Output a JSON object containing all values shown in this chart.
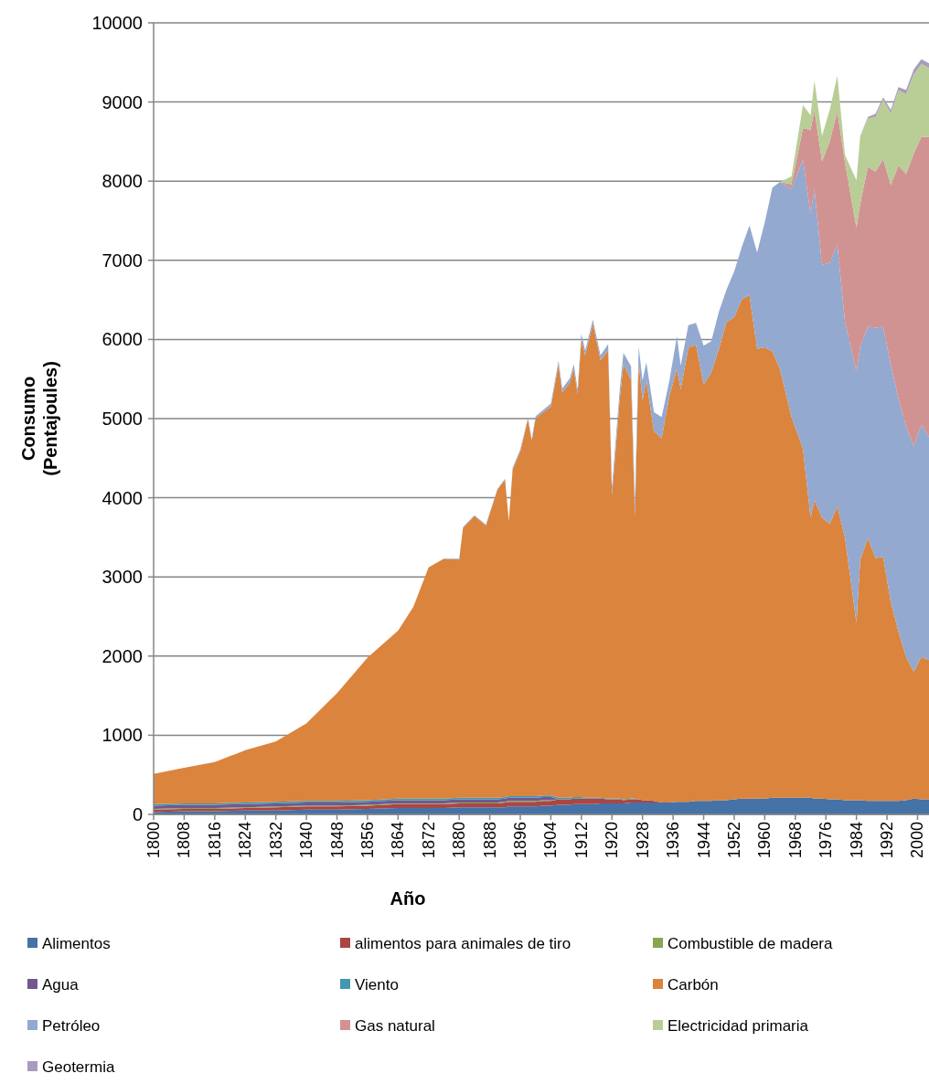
{
  "chart_data": {
    "type": "area",
    "stacked": true,
    "xlabel": "Año",
    "ylabel": "Consumo (Pentajoules)",
    "x": [
      1800,
      1808,
      1816,
      1824,
      1832,
      1840,
      1848,
      1856,
      1864,
      1868,
      1872,
      1876,
      1880,
      1881,
      1884,
      1887,
      1890,
      1892,
      1893,
      1894,
      1896,
      1898,
      1899,
      1900,
      1902,
      1904,
      1906,
      1907,
      1909,
      1910,
      1911,
      1912,
      1913,
      1915,
      1917,
      1919,
      1920,
      1922,
      1923,
      1925,
      1926,
      1927,
      1928,
      1929,
      1931,
      1933,
      1935,
      1937,
      1938,
      1940,
      1942,
      1944,
      1946,
      1948,
      1950,
      1952,
      1954,
      1956,
      1958,
      1960,
      1962,
      1964,
      1967,
      1970,
      1972,
      1973,
      1975,
      1977,
      1979,
      1981,
      1984,
      1985,
      1987,
      1989,
      1991,
      1993,
      1995,
      1997,
      1999,
      2001,
      2003
    ],
    "xlim": [
      1800,
      2003
    ],
    "xticks": [
      1800,
      1808,
      1816,
      1824,
      1832,
      1840,
      1848,
      1856,
      1864,
      1872,
      1880,
      1888,
      1896,
      1904,
      1912,
      1920,
      1928,
      1936,
      1944,
      1952,
      1960,
      1968,
      1976,
      1984,
      1992,
      2000
    ],
    "ylim": [
      0,
      10000
    ],
    "yticks": [
      0,
      1000,
      2000,
      3000,
      4000,
      5000,
      6000,
      7000,
      8000,
      9000,
      10000
    ],
    "grid": "y",
    "legend": "bottom",
    "series": [
      {
        "name": "Alimentos",
        "color": "#4572a7",
        "values": [
          30,
          40,
          40,
          50,
          50,
          60,
          60,
          70,
          80,
          80,
          80,
          80,
          90,
          90,
          90,
          90,
          90,
          90,
          100,
          100,
          100,
          100,
          100,
          100,
          110,
          110,
          120,
          120,
          120,
          130,
          130,
          130,
          130,
          130,
          140,
          140,
          140,
          140,
          140,
          150,
          150,
          150,
          150,
          150,
          150,
          150,
          150,
          160,
          160,
          160,
          170,
          170,
          170,
          180,
          180,
          190,
          200,
          200,
          200,
          200,
          210,
          210,
          210,
          210,
          210,
          200,
          200,
          190,
          190,
          180,
          180,
          180,
          170,
          170,
          170,
          170,
          170,
          180,
          200,
          190,
          190
        ]
      },
      {
        "name": "alimentos para animales de tiro",
        "color": "#aa4643",
        "values": [
          30,
          30,
          30,
          30,
          40,
          40,
          40,
          40,
          50,
          50,
          50,
          50,
          50,
          50,
          50,
          50,
          50,
          60,
          60,
          60,
          60,
          60,
          60,
          60,
          60,
          60,
          70,
          70,
          70,
          70,
          70,
          70,
          70,
          70,
          60,
          50,
          50,
          50,
          40,
          40,
          40,
          40,
          30,
          30,
          20,
          0,
          null,
          null,
          null,
          null,
          null,
          null,
          null,
          null,
          null,
          null,
          null,
          null,
          null,
          null,
          null,
          null,
          null,
          null,
          null,
          null,
          null,
          null,
          null,
          null,
          null,
          null,
          null,
          null,
          null,
          null,
          null,
          null,
          null,
          null,
          null
        ]
      },
      {
        "name": "Combustible de madera",
        "color": "#89a54e",
        "values": [
          10,
          10,
          10,
          10,
          10,
          10,
          10,
          10,
          10,
          10,
          10,
          10,
          10,
          10,
          10,
          10,
          10,
          10,
          10,
          10,
          10,
          10,
          10,
          10,
          10,
          10,
          0,
          null,
          null,
          null,
          null,
          null,
          null,
          null,
          null,
          null,
          null,
          null,
          null,
          null,
          null,
          null,
          null,
          null,
          null,
          null,
          null,
          null,
          null,
          null,
          null,
          null,
          null,
          null,
          null,
          null,
          null,
          null,
          null,
          null,
          null,
          null,
          null,
          null,
          null,
          null,
          null,
          null,
          null,
          null,
          null,
          null,
          null,
          null,
          null,
          null,
          null,
          null,
          null,
          null,
          null
        ]
      },
      {
        "name": "Agua",
        "color": "#71588f",
        "values": [
          40,
          40,
          40,
          40,
          40,
          40,
          40,
          40,
          40,
          40,
          40,
          40,
          40,
          40,
          40,
          40,
          40,
          40,
          40,
          40,
          40,
          40,
          40,
          40,
          40,
          40,
          0,
          null,
          null,
          null,
          null,
          null,
          null,
          null,
          null,
          null,
          null,
          null,
          null,
          null,
          null,
          null,
          null,
          null,
          null,
          null,
          null,
          null,
          null,
          null,
          null,
          null,
          null,
          null,
          null,
          null,
          null,
          null,
          null,
          null,
          null,
          null,
          null,
          null,
          null,
          null,
          null,
          null,
          null,
          null,
          null,
          null,
          null,
          null,
          null,
          null,
          null,
          null,
          null,
          null,
          null
        ]
      },
      {
        "name": "Viento",
        "color": "#4198af",
        "values": [
          20,
          20,
          20,
          20,
          20,
          20,
          20,
          20,
          20,
          20,
          20,
          20,
          20,
          20,
          20,
          20,
          20,
          20,
          20,
          20,
          20,
          20,
          20,
          20,
          20,
          20,
          20,
          20,
          20,
          20,
          20,
          20,
          10,
          10,
          10,
          10,
          10,
          10,
          10,
          10,
          10,
          0,
          null,
          null,
          null,
          null,
          null,
          null,
          null,
          null,
          null,
          null,
          null,
          null,
          null,
          null,
          null,
          null,
          null,
          null,
          null,
          null,
          null,
          null,
          null,
          null,
          null,
          null,
          null,
          null,
          null,
          null,
          null,
          null,
          null,
          null,
          null,
          null,
          null,
          null,
          null
        ]
      },
      {
        "name": "Carbón",
        "color": "#db843d",
        "values": [
          380,
          450,
          520,
          660,
          760,
          980,
          1360,
          1800,
          2120,
          2420,
          2920,
          3030,
          3010,
          3410,
          3560,
          3440,
          3890,
          4010,
          3470,
          4130,
          4360,
          4760,
          4490,
          4770,
          4840,
          4910,
          5470,
          5120,
          5250,
          5410,
          5090,
          5790,
          5590,
          5990,
          5530,
          5660,
          3830,
          5030,
          5490,
          5290,
          3560,
          5520,
          5050,
          5300,
          4670,
          4600,
          5130,
          5470,
          5210,
          5740,
          5760,
          5260,
          5410,
          5700,
          6040,
          6090,
          6310,
          6360,
          5680,
          5700,
          5640,
          5410,
          4810,
          4410,
          3540,
          3770,
          3550,
          3480,
          3700,
          3320,
          2240,
          3040,
          3320,
          3070,
          3080,
          2510,
          2140,
          1810,
          1600,
          1800,
          1760
        ]
      },
      {
        "name": "Petróleo",
        "color": "#93a9cf",
        "values": [
          null,
          null,
          null,
          null,
          null,
          null,
          null,
          null,
          null,
          null,
          null,
          0,
          10,
          10,
          10,
          10,
          10,
          10,
          10,
          20,
          20,
          20,
          20,
          30,
          30,
          40,
          50,
          50,
          50,
          60,
          60,
          60,
          60,
          50,
          60,
          80,
          100,
          120,
          150,
          170,
          180,
          200,
          250,
          230,
          240,
          270,
          190,
          410,
          300,
          280,
          280,
          490,
          400,
          470,
          410,
          580,
          660,
          880,
          1220,
          1580,
          2070,
          2370,
          2880,
          3650,
          3830,
          3930,
          3190,
          3300,
          3310,
          2720,
          3170,
          2690,
          2670,
          2910,
          2910,
          3000,
          2940,
          2910,
          2850,
          2930,
          2820
        ]
      },
      {
        "name": "Gas natural",
        "color": "#d19392",
        "values": [
          null,
          null,
          null,
          null,
          null,
          null,
          null,
          null,
          null,
          null,
          null,
          null,
          null,
          null,
          null,
          null,
          null,
          null,
          null,
          null,
          null,
          null,
          null,
          null,
          null,
          null,
          null,
          null,
          null,
          null,
          null,
          null,
          null,
          null,
          null,
          null,
          null,
          null,
          null,
          null,
          null,
          null,
          null,
          null,
          null,
          null,
          null,
          null,
          null,
          null,
          null,
          null,
          null,
          null,
          null,
          null,
          null,
          null,
          null,
          null,
          null,
          0,
          60,
          400,
          1070,
          1000,
          1310,
          1530,
          1680,
          2020,
          1820,
          1810,
          2020,
          1970,
          2120,
          2270,
          2950,
          3190,
          3700,
          3640,
          3790
        ]
      },
      {
        "name": "Electricidad primaria",
        "color": "#b9cd96",
        "values": [
          null,
          null,
          null,
          null,
          null,
          null,
          null,
          null,
          null,
          null,
          null,
          null,
          null,
          null,
          null,
          null,
          null,
          null,
          null,
          null,
          null,
          null,
          null,
          null,
          null,
          null,
          null,
          null,
          null,
          null,
          null,
          null,
          null,
          null,
          null,
          null,
          null,
          null,
          null,
          null,
          null,
          null,
          null,
          null,
          null,
          null,
          null,
          null,
          null,
          null,
          null,
          null,
          null,
          null,
          null,
          null,
          null,
          null,
          null,
          null,
          null,
          0,
          100,
          290,
          180,
          370,
          320,
          400,
          450,
          90,
          600,
          850,
          610,
          690,
          750,
          910,
          950,
          1010,
          1000,
          920,
          870
        ]
      },
      {
        "name": "Geotermia",
        "color": "#a99bbd",
        "values": [
          null,
          null,
          null,
          null,
          null,
          null,
          null,
          null,
          null,
          null,
          null,
          null,
          null,
          null,
          null,
          null,
          null,
          null,
          null,
          null,
          null,
          null,
          null,
          null,
          null,
          null,
          null,
          null,
          null,
          null,
          null,
          null,
          null,
          null,
          null,
          null,
          null,
          null,
          null,
          null,
          null,
          null,
          null,
          null,
          null,
          null,
          null,
          null,
          null,
          null,
          null,
          null,
          null,
          null,
          null,
          null,
          null,
          null,
          null,
          null,
          null,
          null,
          null,
          null,
          null,
          null,
          null,
          null,
          null,
          null,
          null,
          0,
          20,
          40,
          30,
          40,
          40,
          50,
          60,
          60,
          60
        ]
      }
    ]
  }
}
